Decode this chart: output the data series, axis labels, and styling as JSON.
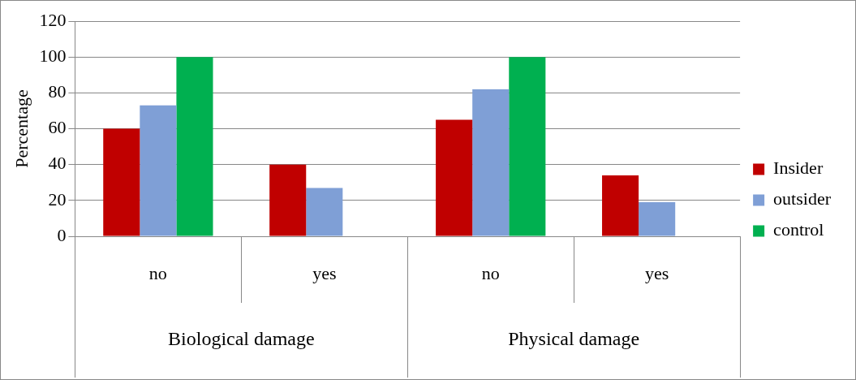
{
  "chart_data": {
    "type": "bar",
    "ylabel": "Percentage",
    "categories": [
      "no",
      "yes",
      "no",
      "yes"
    ],
    "annotations": [
      "Biological damage",
      "Physical damage"
    ],
    "series": [
      {
        "name": "Insider",
        "color": "#c00000",
        "values": [
          60,
          40,
          65,
          34
        ]
      },
      {
        "name": "outsider",
        "color": "#7f9fd6",
        "values": [
          73,
          27,
          82,
          19
        ]
      },
      {
        "name": "control",
        "color": "#00b050",
        "values": [
          100,
          null,
          100,
          null
        ]
      }
    ],
    "ylim": [
      0,
      120
    ],
    "yticks": [
      0,
      20,
      40,
      60,
      80,
      100,
      120
    ],
    "grid": "y",
    "legend": "right"
  }
}
